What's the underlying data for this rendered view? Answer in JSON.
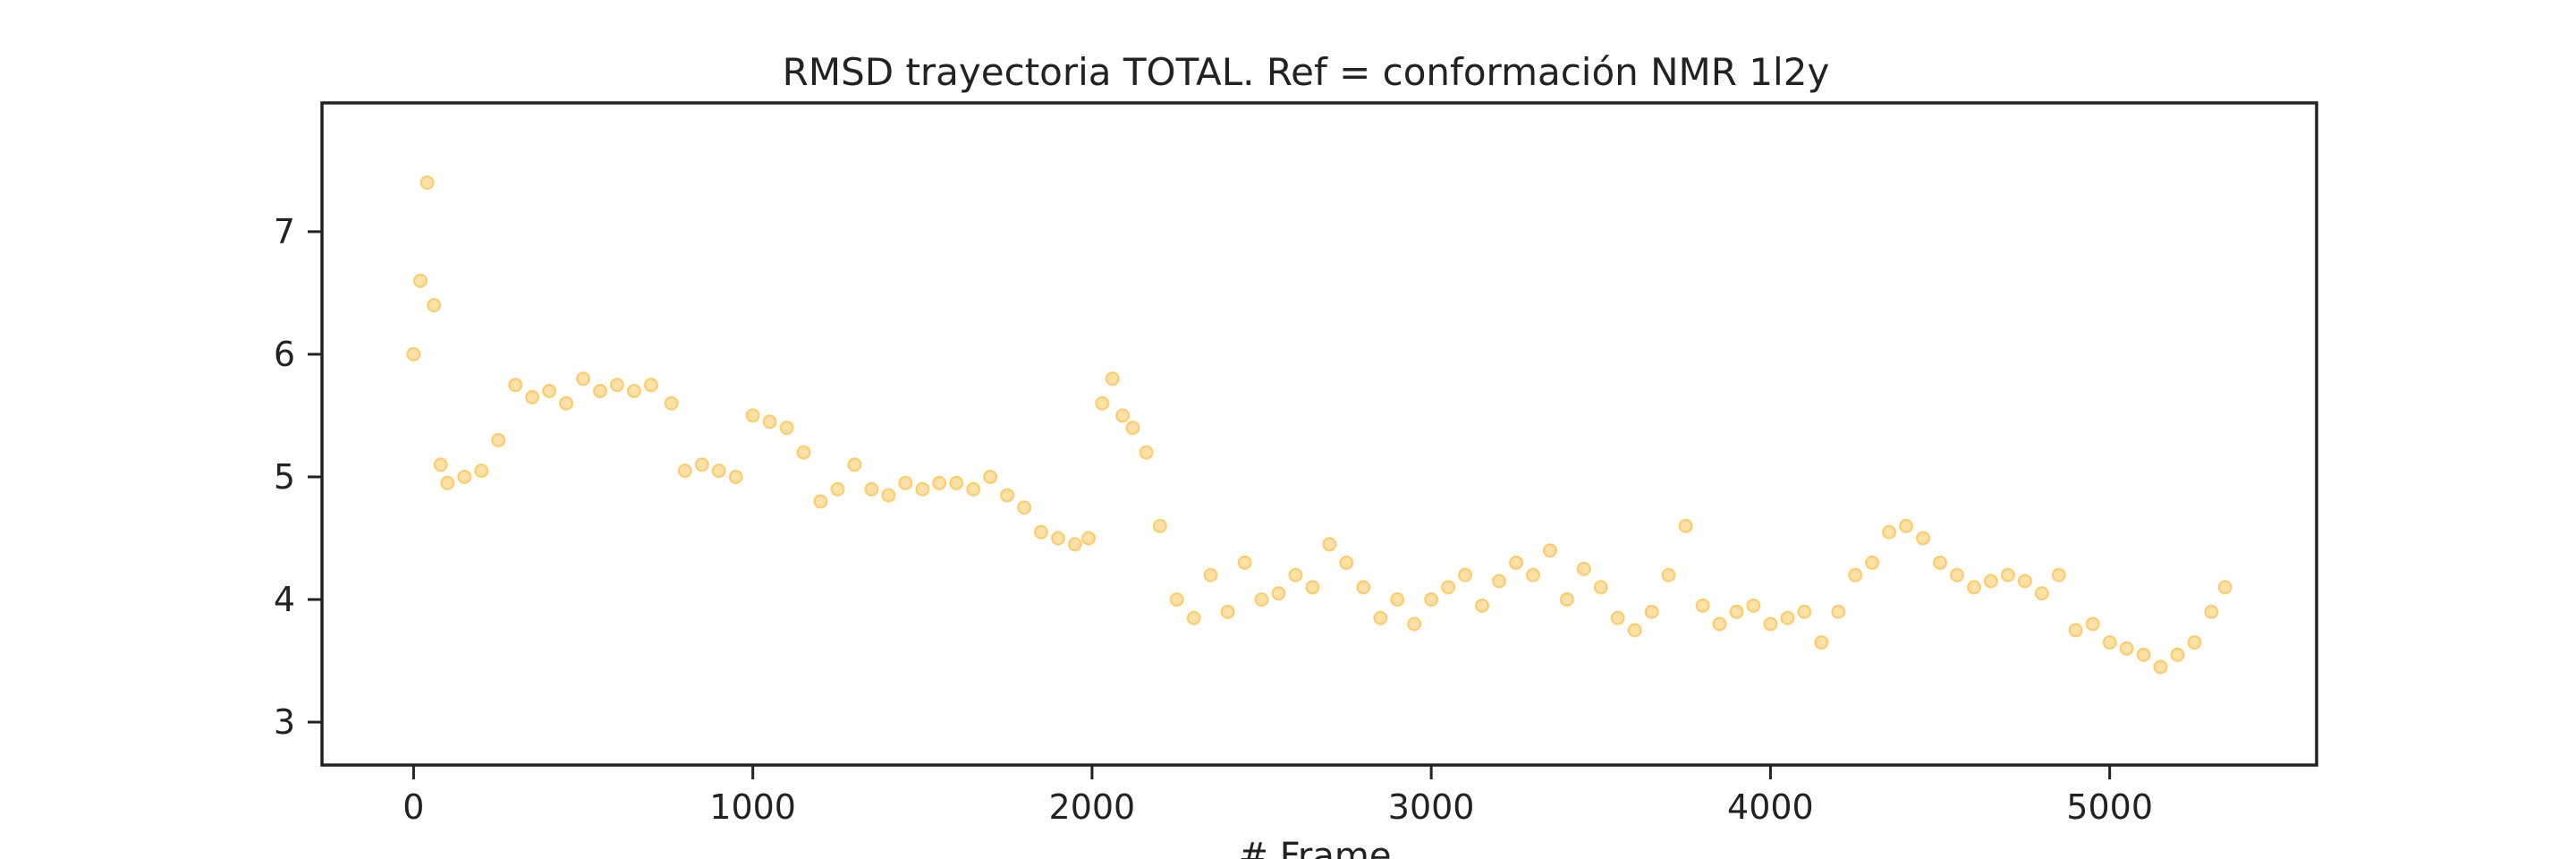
{
  "chart_data": {
    "type": "scatter",
    "title": "RMSD trayectoria TOTAL. Ref = conformación NMR 1l2y",
    "xlabel": "# Frame",
    "ylabel": "",
    "xlim": [
      -270,
      5610
    ],
    "ylim": [
      2.65,
      8.05
    ],
    "xticks": [
      0,
      1000,
      2000,
      3000,
      4000,
      5000
    ],
    "xtick_labels": [
      "0",
      "1000",
      "2000",
      "3000",
      "4000",
      "5000"
    ],
    "yticks": [
      3,
      4,
      5,
      6,
      7
    ],
    "ytick_labels": [
      "3",
      "4",
      "5",
      "6",
      "7"
    ],
    "grid": false,
    "legend": "none",
    "marker_color": "#FFA500",
    "marker_alpha": 0.35,
    "series": [
      {
        "x": [
          0,
          20,
          40,
          60,
          80,
          100,
          150,
          200,
          250,
          300,
          350,
          400,
          450,
          500,
          550,
          600,
          650,
          700,
          760,
          800,
          850,
          900,
          950,
          1000,
          1050,
          1100,
          1150,
          1200,
          1250,
          1300,
          1350,
          1400,
          1450,
          1500,
          1550,
          1600,
          1650,
          1700,
          1750,
          1800,
          1850,
          1900,
          1950,
          1990,
          2030,
          2060,
          2090,
          2120,
          2160,
          2200,
          2250,
          2300,
          2350,
          2400,
          2450,
          2500,
          2550,
          2600,
          2650,
          2700,
          2750,
          2800,
          2850,
          2900,
          2950,
          3000,
          3050,
          3100,
          3150,
          3200,
          3250,
          3300,
          3350,
          3400,
          3450,
          3500,
          3550,
          3600,
          3650,
          3700,
          3750,
          3800,
          3850,
          3900,
          3950,
          4000,
          4050,
          4100,
          4150,
          4200,
          4250,
          4300,
          4350,
          4400,
          4450,
          4500,
          4550,
          4600,
          4650,
          4700,
          4750,
          4800,
          4850,
          4900,
          4950,
          5000,
          5050,
          5100,
          5150,
          5200,
          5250,
          5300,
          5340
        ],
        "y": [
          6.0,
          6.6,
          7.4,
          6.4,
          5.1,
          4.95,
          5.0,
          5.05,
          5.3,
          5.75,
          5.65,
          5.7,
          5.6,
          5.8,
          5.7,
          5.75,
          5.7,
          5.75,
          5.6,
          5.05,
          5.1,
          5.05,
          5.0,
          5.5,
          5.45,
          5.4,
          5.2,
          4.8,
          4.9,
          5.1,
          4.9,
          4.85,
          4.95,
          4.9,
          4.95,
          4.95,
          4.9,
          5.0,
          4.85,
          4.75,
          4.55,
          4.5,
          4.45,
          4.5,
          5.6,
          5.8,
          5.5,
          5.4,
          5.2,
          4.6,
          4.0,
          3.85,
          4.2,
          3.9,
          4.3,
          4.0,
          4.05,
          4.2,
          4.1,
          4.45,
          4.3,
          4.1,
          3.85,
          4.0,
          3.8,
          4.0,
          4.1,
          4.2,
          3.95,
          4.15,
          4.3,
          4.2,
          4.4,
          4.0,
          4.25,
          4.1,
          3.85,
          3.75,
          3.9,
          4.2,
          4.6,
          3.95,
          3.8,
          3.9,
          3.95,
          3.8,
          3.85,
          3.9,
          3.65,
          3.9,
          4.2,
          4.3,
          4.55,
          4.6,
          4.5,
          4.3,
          4.2,
          4.1,
          4.15,
          4.2,
          4.15,
          4.05,
          4.2,
          3.75,
          3.8,
          3.65,
          3.6,
          3.55,
          3.45,
          3.55,
          3.65,
          3.9,
          4.1
        ]
      }
    ]
  }
}
